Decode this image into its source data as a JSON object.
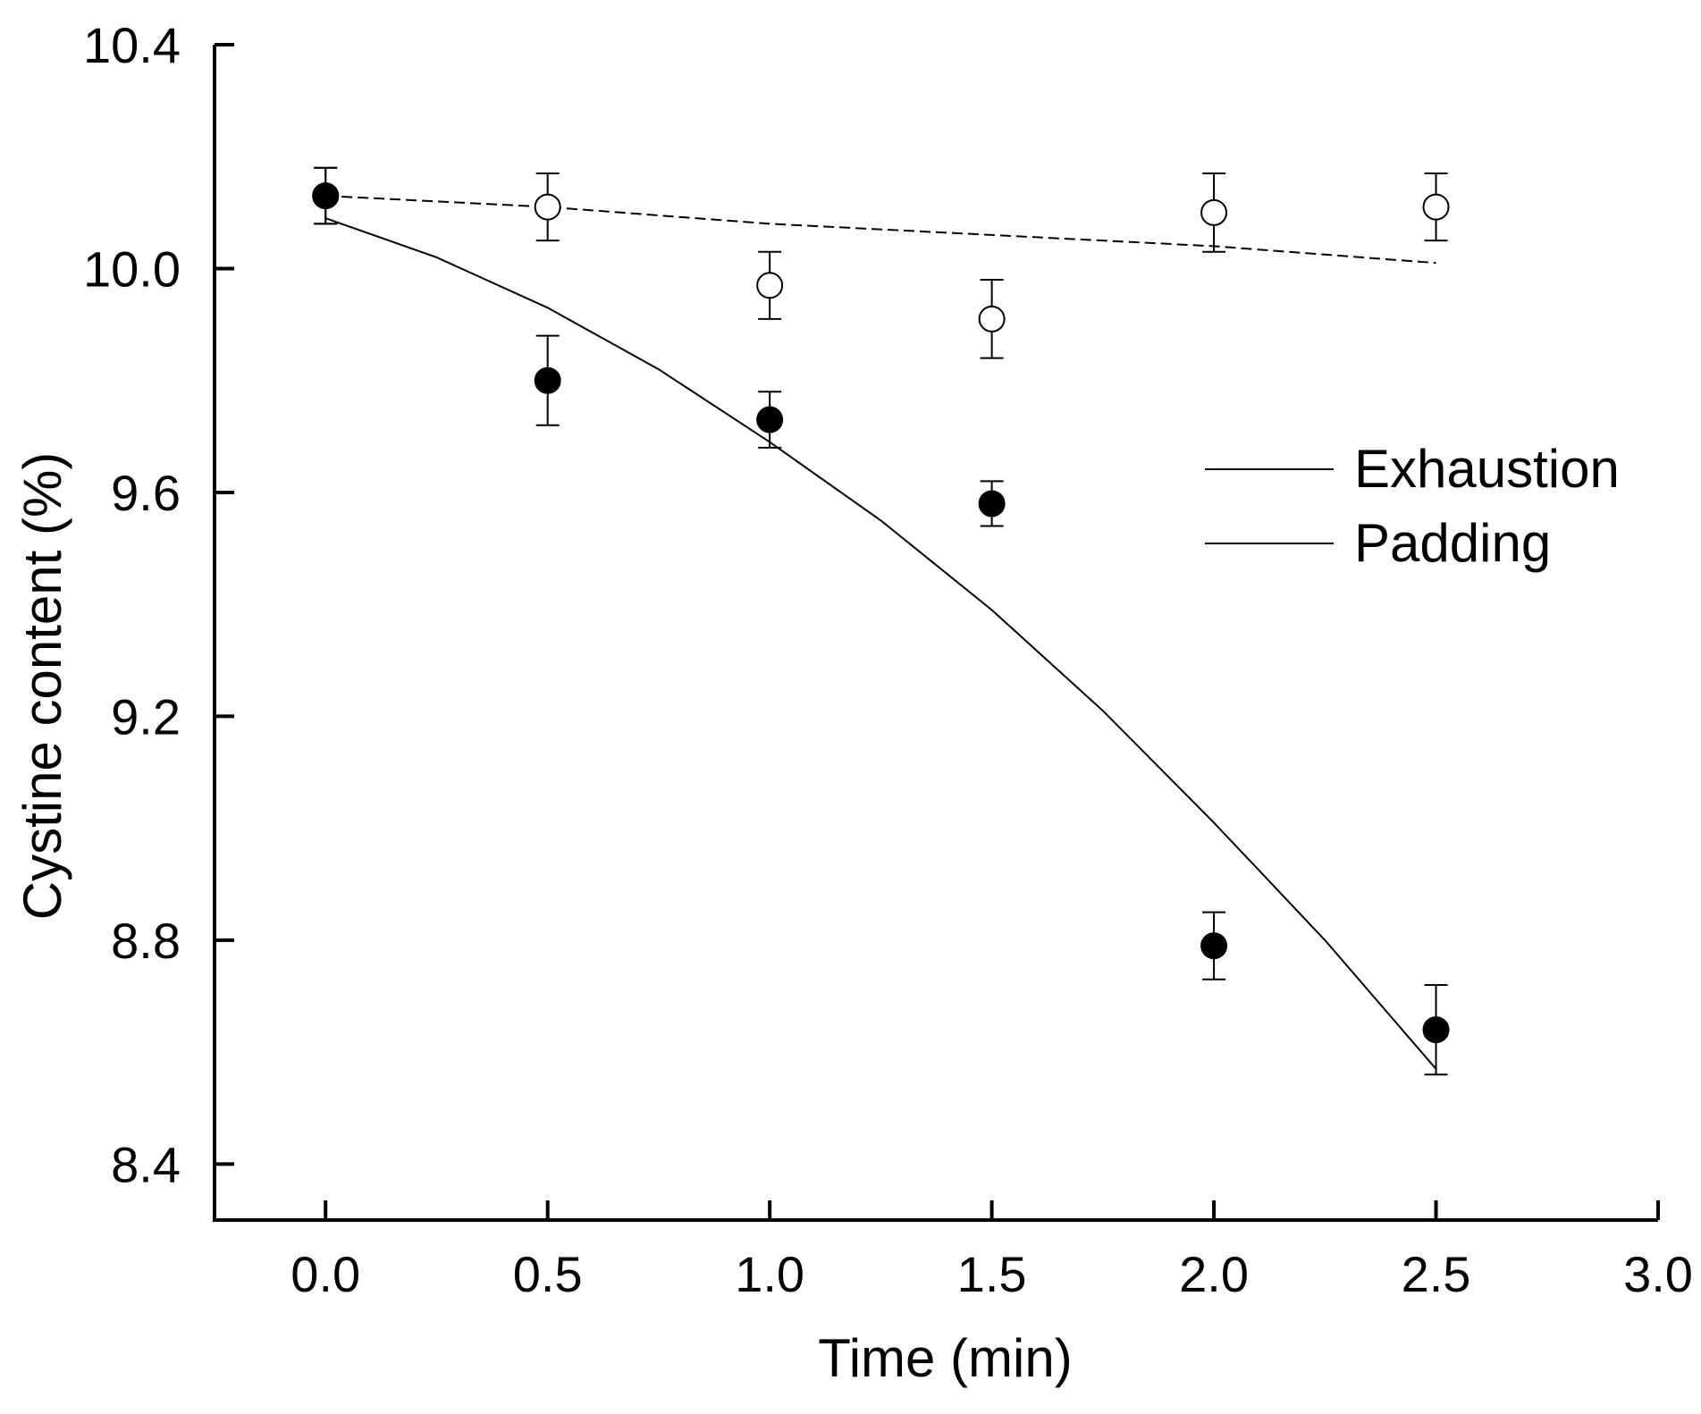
{
  "chart_data": {
    "type": "scatter",
    "title": "",
    "xlabel": "Time (min)",
    "ylabel": "Cystine content (%)",
    "xlim": [
      -0.25,
      3.0
    ],
    "ylim": [
      8.3,
      10.4
    ],
    "xticks": [
      "0.0",
      "0.5",
      "1.0",
      "1.5",
      "2.0",
      "2.5",
      "3.0"
    ],
    "yticks": [
      "8.4",
      "8.8",
      "9.2",
      "9.6",
      "10.0",
      "10.4"
    ],
    "grid": false,
    "legend_position": "right",
    "series": [
      {
        "name": "Exhaustion",
        "marker": "open-circle",
        "line": "dashed",
        "x": [
          0.0,
          0.5,
          1.0,
          1.5,
          2.0,
          2.5
        ],
        "y": [
          10.13,
          10.11,
          9.97,
          9.91,
          10.1,
          10.11
        ],
        "error": [
          0.05,
          0.06,
          0.06,
          0.07,
          0.07,
          0.06
        ],
        "fit_x": [
          0.0,
          0.5,
          1.0,
          1.5,
          2.0,
          2.5
        ],
        "fit_y": [
          10.13,
          10.11,
          10.08,
          10.06,
          10.04,
          10.01
        ]
      },
      {
        "name": "Padding",
        "marker": "filled-circle",
        "line": "solid",
        "x": [
          0.0,
          0.5,
          1.0,
          1.5,
          2.0,
          2.5
        ],
        "y": [
          10.13,
          9.8,
          9.73,
          9.58,
          8.79,
          8.64
        ],
        "error": [
          0.05,
          0.08,
          0.05,
          0.04,
          0.06,
          0.08
        ],
        "fit_x": [
          0.0,
          0.25,
          0.5,
          0.75,
          1.0,
          1.25,
          1.5,
          1.75,
          2.0,
          2.25,
          2.5
        ],
        "fit_y": [
          10.09,
          10.02,
          9.93,
          9.82,
          9.69,
          9.55,
          9.39,
          9.21,
          9.01,
          8.8,
          8.57
        ]
      }
    ]
  }
}
